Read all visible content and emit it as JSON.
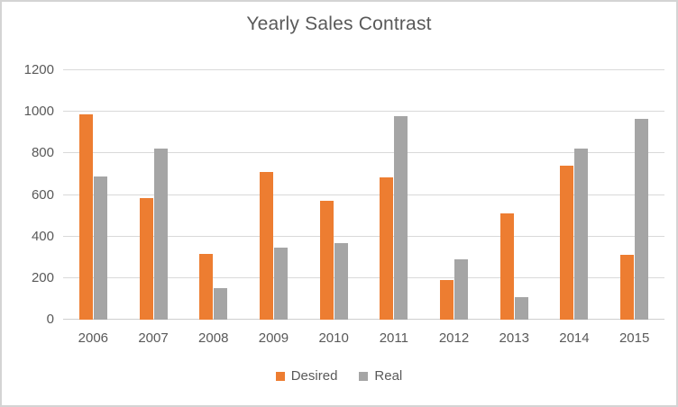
{
  "chart_data": {
    "type": "bar",
    "title": "Yearly Sales Contrast",
    "categories": [
      "2006",
      "2007",
      "2008",
      "2009",
      "2010",
      "2011",
      "2012",
      "2013",
      "2014",
      "2015"
    ],
    "series": [
      {
        "name": "Desired",
        "color": "#ED7D31",
        "values": [
          990,
          585,
          315,
          710,
          570,
          685,
          190,
          510,
          740,
          310
        ]
      },
      {
        "name": "Real",
        "color": "#A5A5A5",
        "values": [
          690,
          825,
          150,
          345,
          370,
          980,
          290,
          110,
          825,
          965
        ]
      }
    ],
    "xlabel": "",
    "ylabel": "",
    "ylim": [
      0,
      1200
    ],
    "yticks": [
      0,
      200,
      400,
      600,
      800,
      1000,
      1200
    ],
    "grid": true,
    "legend_position": "bottom"
  },
  "colors": {
    "text": "#595959",
    "gridline": "#D9D9D9",
    "frame_border": "#D4D4D4",
    "background": "#FFFFFF"
  }
}
